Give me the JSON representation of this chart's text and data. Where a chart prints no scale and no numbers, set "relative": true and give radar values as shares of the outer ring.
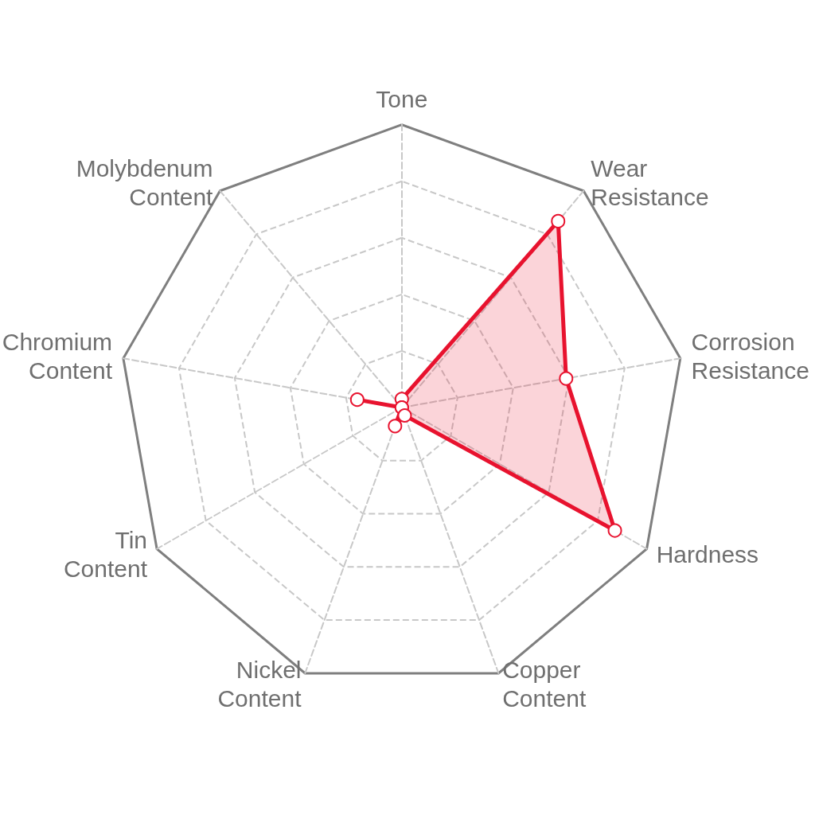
{
  "chart_data": {
    "type": "radar",
    "relative": true,
    "categories": [
      "Tone",
      "Wear\nResistance",
      "Corrosion\nResistance",
      "Hardness",
      "Copper\nContent",
      "Nickel\nContent",
      "Tin\nContent",
      "Chromium\nContent",
      "Molybdenum\nContent"
    ],
    "series": [
      {
        "color": "#e8132f",
        "values": [
          0.03,
          0.86,
          0.59,
          0.87,
          0.03,
          0.07,
          0,
          0.16,
          0
        ]
      }
    ],
    "marker": "circle",
    "grid": true
  }
}
